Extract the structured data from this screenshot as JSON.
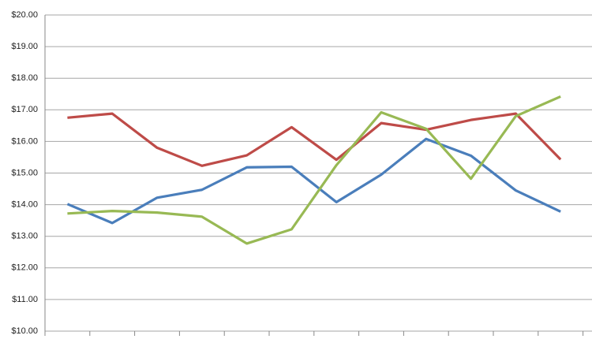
{
  "chart_data": {
    "type": "line",
    "categories": [
      null,
      null,
      null,
      null,
      null,
      null,
      null,
      null,
      null,
      null,
      null,
      null
    ],
    "series": [
      {
        "color": "#4a7ebb",
        "values": [
          14.02,
          13.42,
          14.22,
          14.47,
          15.18,
          15.2,
          14.08,
          14.95,
          16.08,
          15.55,
          14.45,
          13.78
        ]
      },
      {
        "color": "#be4b48",
        "values": [
          16.75,
          16.88,
          15.8,
          15.23,
          15.56,
          16.45,
          15.42,
          16.58,
          16.37,
          16.68,
          16.88,
          15.43
        ]
      },
      {
        "color": "#98b954",
        "values": [
          13.72,
          13.8,
          13.75,
          13.62,
          12.77,
          13.22,
          15.25,
          16.92,
          16.4,
          14.82,
          16.8,
          17.42
        ]
      }
    ],
    "ylim": [
      10,
      20
    ],
    "yticks": [
      {
        "value": 10,
        "label": "$10.00"
      },
      {
        "value": 11,
        "label": "$11.00"
      },
      {
        "value": 12,
        "label": "$12.00"
      },
      {
        "value": 13,
        "label": "$13.00"
      },
      {
        "value": 14,
        "label": "$14.00"
      },
      {
        "value": 15,
        "label": "$15.00"
      },
      {
        "value": 16,
        "label": "$16.00"
      },
      {
        "value": 17,
        "label": "$17.00"
      },
      {
        "value": 18,
        "label": "$18.00"
      },
      {
        "value": 19,
        "label": "$19.00"
      },
      {
        "value": 20,
        "label": "$20.00"
      }
    ],
    "grid": true
  }
}
